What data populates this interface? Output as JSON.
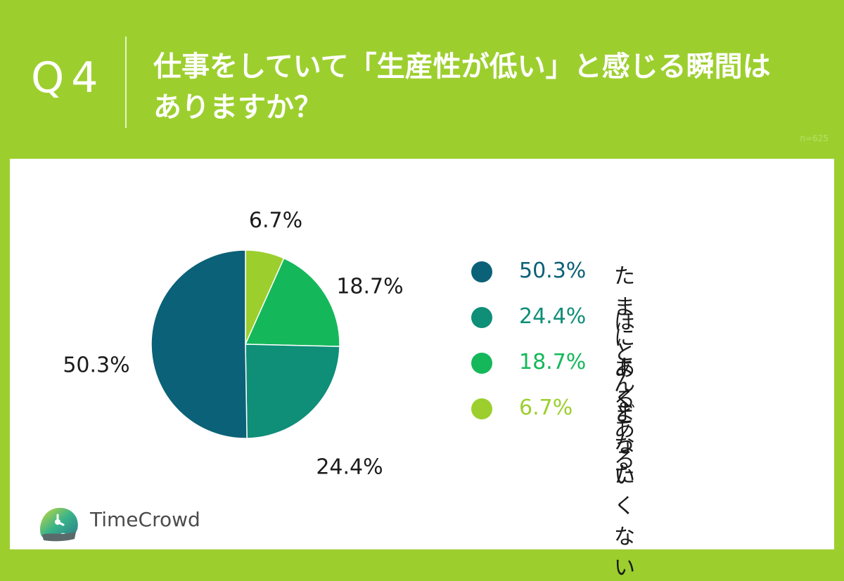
{
  "header": {
    "q_number": "Q4",
    "question_line1": "仕事をしていて「生産性が低い」と感じる瞬間は",
    "question_line2": "ありますか？",
    "n_label": "n=625"
  },
  "chart_data": {
    "type": "pie",
    "start_angle_deg": 0,
    "direction": "clockwise",
    "slices": [
      {
        "label": "まったくない",
        "value": 6.7,
        "display": "6.7%",
        "color": "#9ccf2e"
      },
      {
        "label": "よくある",
        "value": 18.7,
        "display": "18.7%",
        "color": "#14b85a"
      },
      {
        "label": "ほとんどない",
        "value": 24.4,
        "display": "24.4%",
        "color": "#0f8e78"
      },
      {
        "label": "たまにある",
        "value": 50.3,
        "display": "50.3%",
        "color": "#0b6177"
      }
    ]
  },
  "legend": [
    {
      "pct": "50.3%",
      "label": "たまにある",
      "color": "#0b6177"
    },
    {
      "pct": "24.4%",
      "label": "ほとんどない",
      "color": "#0f8e78"
    },
    {
      "pct": "18.7%",
      "label": "よくある",
      "color": "#14b85a"
    },
    {
      "pct": "6.7%",
      "label": "まったくない",
      "color": "#9ccf2e"
    }
  ],
  "logo": {
    "text": "TimeCrowd"
  }
}
